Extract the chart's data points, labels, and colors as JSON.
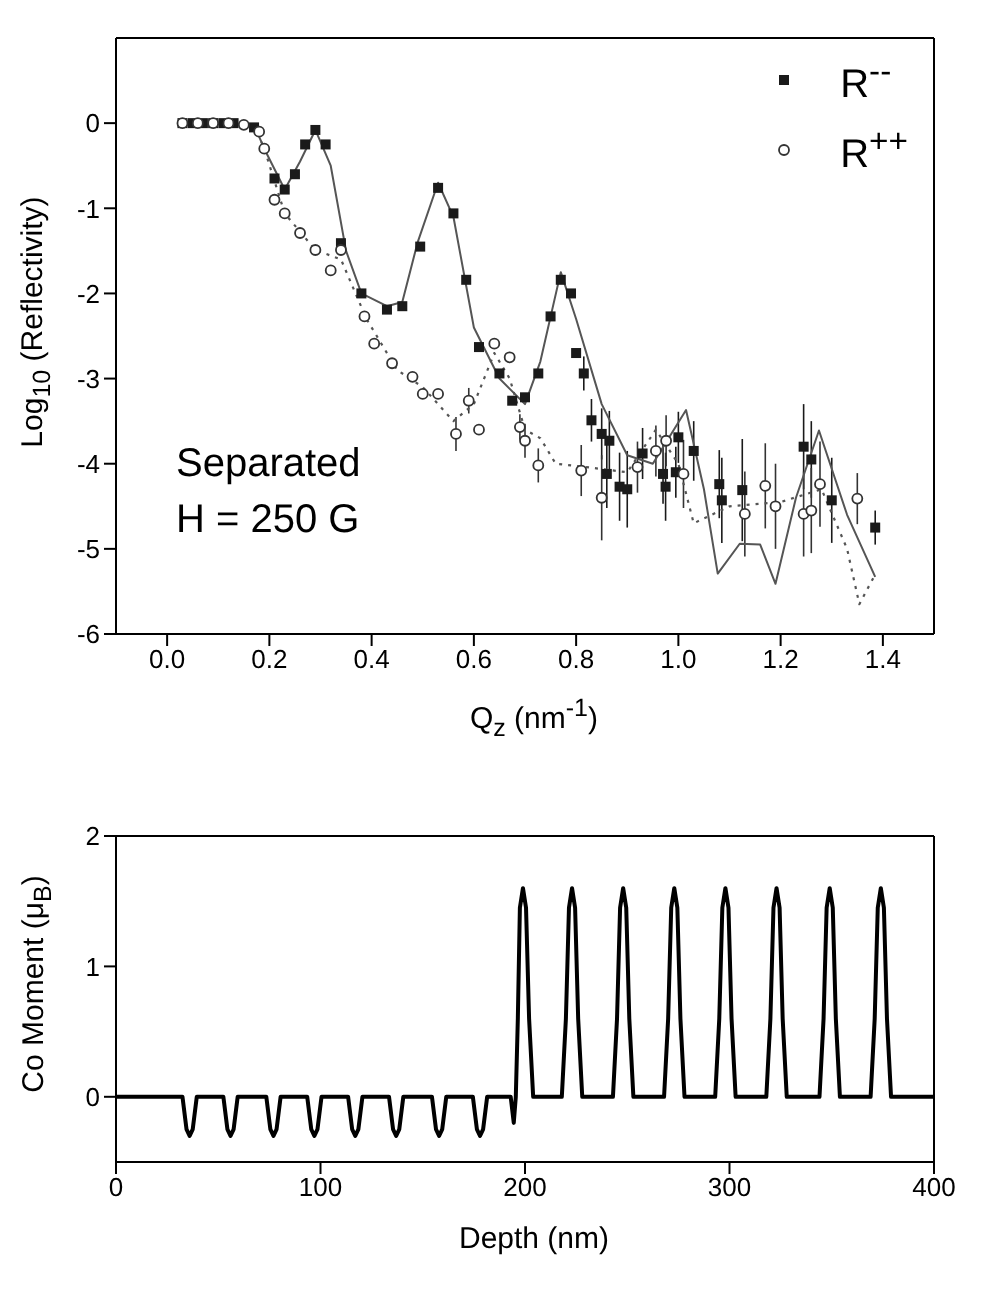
{
  "chart_data": [
    {
      "type": "scatter",
      "xlabel": "Q$_{z}$ (nm$^{-1}$)",
      "ylabel": "Log$_{10}$ (Reflectivity)",
      "xlim": [
        -0.1,
        1.5
      ],
      "ylim": [
        -6,
        1
      ],
      "xticks": [
        {
          "value": 0,
          "label": "0.0"
        },
        {
          "value": 0.2,
          "label": "0.2"
        },
        {
          "value": 0.4,
          "label": "0.4"
        },
        {
          "value": 0.6,
          "label": "0.6"
        },
        {
          "value": 0.8,
          "label": "0.8"
        },
        {
          "value": 1,
          "label": "1.0"
        },
        {
          "value": 1.2,
          "label": "1.2"
        },
        {
          "value": 1.4,
          "label": "1.4"
        }
      ],
      "yticks": [
        -6,
        -5,
        -4,
        -3,
        -2,
        -1,
        0
      ],
      "legend": "top right",
      "annotations": [
        "Separated",
        "H = 250 G"
      ],
      "series": [
        {
          "name": "R$^{--}$",
          "marker": "square",
          "color": "#1a1a1a",
          "x": [
            0.03,
            0.05,
            0.07,
            0.09,
            0.11,
            0.13,
            0.15,
            0.17,
            0.19,
            0.21,
            0.23,
            0.25,
            0.27,
            0.29,
            0.31,
            0.34,
            0.38,
            0.43,
            0.46,
            0.495,
            0.53,
            0.56,
            0.585,
            0.61,
            0.65,
            0.675,
            0.7,
            0.726,
            0.75,
            0.77,
            0.79,
            0.8,
            0.815,
            0.83,
            0.85,
            0.86,
            0.865,
            0.885,
            0.9,
            0.93,
            0.97,
            0.975,
            0.995,
            1.0,
            1.03,
            1.08,
            1.085,
            1.125,
            1.245,
            1.26,
            1.3,
            1.385
          ],
          "values": [
            0,
            0,
            0,
            0,
            0,
            0,
            null,
            -0.05,
            null,
            -0.65,
            -0.78,
            -0.6,
            -0.25,
            -0.08,
            -0.25,
            -1.41,
            -2.0,
            -2.19,
            -2.15,
            -1.45,
            -0.76,
            -1.06,
            -1.84,
            -2.63,
            -2.94,
            -3.26,
            -3.22,
            -2.94,
            -2.27,
            -1.84,
            -2.0,
            -2.7,
            -2.94,
            -3.49,
            -3.65,
            -4.12,
            -3.73,
            -4.27,
            -4.3,
            -3.88,
            -4.12,
            -4.27,
            -4.1,
            -3.69,
            -3.85,
            -4.24,
            -4.43,
            -4.31,
            -3.8,
            -3.95,
            -4.43,
            -4.75
          ],
          "errors": [
            null,
            null,
            null,
            null,
            null,
            null,
            null,
            null,
            null,
            null,
            null,
            null,
            null,
            null,
            null,
            null,
            null,
            null,
            null,
            null,
            null,
            null,
            null,
            null,
            null,
            null,
            null,
            null,
            null,
            null,
            null,
            null,
            0.2,
            0.25,
            0.3,
            0.4,
            0.35,
            0.4,
            0.45,
            0.3,
            0.35,
            0.4,
            0.3,
            0.3,
            0.35,
            0.4,
            0.5,
            0.6,
            0.5,
            0.45,
            0.5,
            0.2
          ]
        },
        {
          "name": "R$^{++}$",
          "marker": "circle",
          "color": "#333333",
          "x": [
            0.03,
            0.06,
            0.09,
            0.12,
            0.15,
            0.18,
            0.19,
            0.21,
            0.23,
            0.26,
            0.29,
            0.32,
            0.34,
            0.386,
            0.405,
            0.44,
            0.48,
            0.5,
            0.53,
            0.565,
            0.59,
            0.61,
            0.64,
            0.67,
            0.69,
            0.7,
            0.726,
            0.81,
            0.85,
            0.92,
            0.956,
            0.976,
            1.01,
            1.13,
            1.17,
            1.19,
            1.245,
            1.26,
            1.277,
            1.35
          ],
          "values": [
            0,
            0,
            0,
            0,
            -0.02,
            -0.1,
            -0.3,
            -0.9,
            -1.06,
            -1.29,
            -1.49,
            -1.73,
            -1.49,
            -2.27,
            -2.59,
            -2.82,
            -2.98,
            -3.18,
            -3.18,
            -3.65,
            -3.26,
            -3.6,
            -2.59,
            -2.75,
            -3.57,
            -3.73,
            -4.02,
            -4.08,
            -4.4,
            -4.04,
            -3.85,
            -3.73,
            -4.12,
            -4.59,
            -4.26,
            -4.5,
            -4.59,
            -4.55,
            -4.24,
            -4.41
          ],
          "errors": [
            null,
            null,
            null,
            null,
            null,
            null,
            null,
            null,
            null,
            null,
            null,
            null,
            null,
            null,
            null,
            null,
            null,
            null,
            null,
            0.2,
            0.15,
            null,
            null,
            null,
            0.15,
            0.2,
            0.2,
            0.3,
            0.5,
            0.3,
            0.3,
            0.3,
            0.4,
            0.5,
            0.5,
            0.5,
            0.5,
            0.5,
            0.5,
            0.3
          ]
        },
        {
          "type": "line",
          "line_style": "solid",
          "color": "#555555",
          "x": [
            0.03,
            0.17,
            0.19,
            0.23,
            0.26,
            0.29,
            0.32,
            0.35,
            0.38,
            0.43,
            0.46,
            0.49,
            0.53,
            0.56,
            0.6,
            0.65,
            0.7,
            0.73,
            0.77,
            0.8,
            0.85,
            0.9,
            0.95,
            1.015,
            1.05,
            1.077,
            1.12,
            1.16,
            1.19,
            1.23,
            1.275,
            1.33,
            1.385
          ],
          "values": [
            0,
            -0.02,
            -0.3,
            -0.78,
            -0.45,
            -0.08,
            -0.5,
            -1.5,
            -2.0,
            -2.15,
            -2.1,
            -1.4,
            -0.7,
            -1.1,
            -2.4,
            -3.0,
            -3.3,
            -2.8,
            -1.75,
            -2.3,
            -3.3,
            -3.9,
            -4.0,
            -3.37,
            -4.3,
            -5.29,
            -4.94,
            -4.95,
            -5.41,
            -4.4,
            -3.61,
            -4.6,
            -5.33
          ]
        },
        {
          "type": "line",
          "line_style": "dotted",
          "color": "#555555",
          "x": [
            0.03,
            0.17,
            0.19,
            0.23,
            0.29,
            0.34,
            0.39,
            0.45,
            0.5,
            0.56,
            0.6,
            0.64,
            0.67,
            0.7,
            0.73,
            0.76,
            0.82,
            0.9,
            0.956,
            1.0,
            1.03,
            1.1,
            1.2,
            1.28,
            1.33,
            1.354,
            1.385
          ],
          "values": [
            0,
            -0.02,
            -0.3,
            -1.06,
            -1.49,
            -1.6,
            -2.3,
            -2.9,
            -3.1,
            -3.5,
            -3.3,
            -2.7,
            -3.0,
            -3.6,
            -3.7,
            -4.0,
            -4.04,
            -4.1,
            -3.6,
            -4.0,
            -4.7,
            -4.5,
            -4.45,
            -4.3,
            -5.0,
            -5.65,
            -5.3
          ]
        }
      ]
    },
    {
      "type": "line",
      "xlabel": "Depth (nm)",
      "ylabel": "Co Moment (μ$_{B}$)",
      "xlim": [
        0,
        400
      ],
      "ylim": [
        -0.5,
        2
      ],
      "xticks": [
        0,
        100,
        200,
        300,
        400
      ],
      "yticks": [
        0,
        1,
        2
      ],
      "marker": "none",
      "series": [
        {
          "color": "#000000",
          "x": [
            0,
            32.5,
            34.5,
            36,
            37.5,
            39.5,
            52.5,
            54.5,
            56,
            57.5,
            59.5,
            73.5,
            75.5,
            77,
            78.5,
            80.5,
            93.5,
            95.5,
            97,
            98.5,
            100.5,
            113.5,
            115.5,
            117,
            118.5,
            120.5,
            133.5,
            135.5,
            137,
            138.5,
            140.5,
            154.5,
            156.5,
            158,
            159.5,
            161.5,
            174.5,
            176.5,
            178,
            179.5,
            181.5,
            193,
            194.5,
            195.5,
            196.5,
            197.5,
            199,
            200.5,
            202,
            204,
            218,
            220,
            221.5,
            223,
            224.5,
            226,
            228,
            243,
            245,
            246.5,
            248,
            249.5,
            251,
            253,
            268,
            270,
            271.5,
            273,
            274.5,
            276,
            278,
            293,
            295,
            296.5,
            298,
            299.5,
            301,
            303,
            318,
            320,
            321.5,
            323,
            324.5,
            326,
            328,
            344,
            346,
            347.5,
            349,
            350.5,
            352,
            354,
            369,
            371,
            372.5,
            374,
            375.5,
            377,
            379,
            400
          ],
          "values": [
            0,
            0,
            -0.25,
            -0.3,
            -0.25,
            0,
            0,
            -0.25,
            -0.3,
            -0.25,
            0,
            0,
            -0.25,
            -0.3,
            -0.25,
            0,
            0,
            -0.25,
            -0.3,
            -0.25,
            0,
            0,
            -0.25,
            -0.3,
            -0.25,
            0,
            0,
            -0.25,
            -0.3,
            -0.25,
            0,
            0,
            -0.25,
            -0.3,
            -0.25,
            0,
            0,
            -0.25,
            -0.3,
            -0.25,
            0,
            0,
            -0.2,
            0,
            0.6,
            1.45,
            1.6,
            1.45,
            0.6,
            0,
            0,
            0.6,
            1.45,
            1.6,
            1.45,
            0.6,
            0,
            0,
            0.6,
            1.45,
            1.6,
            1.45,
            0.6,
            0,
            0,
            0.6,
            1.45,
            1.6,
            1.45,
            0.6,
            0,
            0,
            0.6,
            1.45,
            1.6,
            1.45,
            0.6,
            0,
            0,
            0.6,
            1.45,
            1.6,
            1.45,
            0.6,
            0,
            0,
            0.6,
            1.45,
            1.6,
            1.45,
            0.6,
            0,
            0,
            0.6,
            1.45,
            1.6,
            1.45,
            0.6,
            0,
            0
          ]
        }
      ]
    }
  ]
}
